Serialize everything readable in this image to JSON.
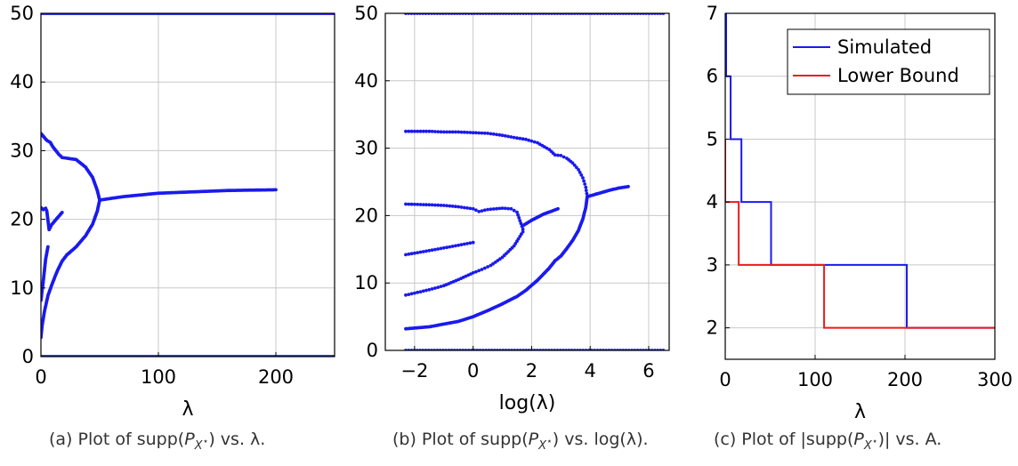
{
  "chart_data": [
    {
      "type": "scatter",
      "xlabel": "λ",
      "ylabel": "",
      "xlim": [
        0,
        250
      ],
      "ylim": [
        0,
        50
      ],
      "xticks": [
        0,
        100,
        200
      ],
      "yticks": [
        0,
        10,
        20,
        30,
        40,
        50
      ],
      "grid": true,
      "color": "#1a1aee",
      "series": [
        {
          "x": [
            0,
            250
          ],
          "y": [
            0,
            0
          ]
        },
        {
          "x": [
            0,
            250
          ],
          "y": [
            50,
            50
          ]
        },
        {
          "x": [
            0,
            2,
            5,
            8,
            10,
            15,
            18,
            22,
            30,
            38,
            44,
            48,
            50
          ],
          "y": [
            32.5,
            32.1,
            31.5,
            31.2,
            30.6,
            29.5,
            29.0,
            28.9,
            28.7,
            27.6,
            26.1,
            24.2,
            22.8
          ]
        },
        {
          "x": [
            50,
            48,
            44,
            38,
            30,
            22,
            18,
            14,
            10,
            6,
            3,
            1,
            0
          ],
          "y": [
            22.8,
            21.2,
            19.3,
            17.6,
            16.0,
            14.8,
            13.9,
            12.5,
            10.8,
            8.9,
            6.6,
            4.5,
            2.8
          ]
        },
        {
          "x": [
            50,
            70,
            100,
            130,
            160,
            200
          ],
          "y": [
            22.8,
            23.3,
            23.8,
            24.0,
            24.2,
            24.3
          ]
        },
        {
          "x": [
            0,
            2,
            4,
            5,
            7,
            9,
            12,
            15,
            18
          ],
          "y": [
            21.7,
            21.4,
            21.6,
            21.2,
            18.5,
            19.2,
            19.8,
            20.4,
            21.0
          ]
        },
        {
          "x": [
            0,
            2,
            4,
            6
          ],
          "y": [
            8.2,
            11.0,
            14.2,
            16.0
          ]
        }
      ]
    },
    {
      "type": "scatter",
      "xlabel": "log(λ)",
      "ylabel": "",
      "xlim": [
        -3,
        6.7
      ],
      "ylim": [
        0,
        50
      ],
      "xticks": [
        -2,
        0,
        2,
        4,
        6
      ],
      "yticks": [
        0,
        10,
        20,
        30,
        40,
        50
      ],
      "grid": true,
      "color": "#1a1aee",
      "series": [
        {
          "x": [
            -2.3,
            6.5
          ],
          "y": [
            0,
            0
          ]
        },
        {
          "x": [
            -2.3,
            6.5
          ],
          "y": [
            50,
            50
          ]
        },
        {
          "x": [
            -2.3,
            -1.5,
            -1.0,
            -0.5,
            0.0,
            0.5,
            1.0,
            1.5,
            1.8,
            2.2,
            2.6,
            2.8,
            3.0,
            3.2,
            3.4,
            3.6,
            3.75,
            3.85,
            3.9
          ],
          "y": [
            32.5,
            32.5,
            32.4,
            32.4,
            32.3,
            32.2,
            31.9,
            31.5,
            31.3,
            30.8,
            29.8,
            29.0,
            28.9,
            28.5,
            27.8,
            26.8,
            25.6,
            24.2,
            22.8
          ]
        },
        {
          "x": [
            3.9,
            3.85,
            3.75,
            3.6,
            3.4,
            3.2,
            3.0,
            2.8,
            2.6,
            2.2,
            1.8,
            1.5,
            1.0,
            0.5,
            0.0,
            -0.5,
            -1.0,
            -1.5,
            -2.3
          ],
          "y": [
            22.8,
            21.2,
            19.5,
            17.8,
            16.3,
            15.1,
            14.0,
            13.3,
            12.2,
            10.4,
            8.9,
            8.0,
            6.9,
            5.9,
            5.0,
            4.3,
            3.9,
            3.5,
            3.2
          ]
        },
        {
          "x": [
            3.9,
            4.3,
            4.7,
            5.0,
            5.3
          ],
          "y": [
            22.8,
            23.3,
            23.8,
            24.1,
            24.3
          ]
        },
        {
          "x": [
            -2.3,
            -1.5,
            -1.0,
            -0.5,
            0.0,
            0.2,
            0.5,
            1.0,
            1.3,
            1.5,
            1.7
          ],
          "y": [
            21.7,
            21.6,
            21.5,
            21.3,
            21.0,
            20.6,
            20.9,
            21.1,
            21.0,
            20.5,
            18.0
          ]
        },
        {
          "x": [
            1.7,
            2.0,
            2.4,
            2.9
          ],
          "y": [
            18.5,
            19.3,
            20.2,
            21.0
          ]
        },
        {
          "x": [
            -2.3,
            -1.5,
            -1.0,
            -0.5,
            0.0,
            0.3,
            0.6,
            1.0,
            1.4,
            1.7
          ],
          "y": [
            8.2,
            9.0,
            9.6,
            10.5,
            11.5,
            12.0,
            12.6,
            13.8,
            15.5,
            17.6
          ]
        },
        {
          "x": [
            -2.3,
            -1.5,
            -1.0,
            -0.5,
            0.0
          ],
          "y": [
            14.2,
            14.8,
            15.2,
            15.6,
            16.0
          ]
        }
      ]
    },
    {
      "type": "line",
      "xlabel": "λ",
      "ylabel": "",
      "xlim": [
        0,
        300
      ],
      "ylim": [
        1.5,
        7
      ],
      "xticks": [
        0,
        100,
        200,
        300
      ],
      "yticks": [
        2,
        3,
        4,
        5,
        6,
        7
      ],
      "grid": true,
      "legend": "top-right",
      "series": [
        {
          "name": "Simulated",
          "color": "#1a1aee",
          "x": [
            0,
            1,
            1,
            6,
            6,
            18,
            18,
            51,
            51,
            202,
            202,
            300
          ],
          "y": [
            7,
            7,
            6,
            6,
            5,
            5,
            4,
            4,
            3,
            3,
            2,
            2
          ]
        },
        {
          "name": "Lower Bound",
          "color": "#ee1a1a",
          "x": [
            0,
            0,
            0,
            15,
            15,
            110,
            110,
            300
          ],
          "y": [
            5,
            5,
            4,
            4,
            3,
            3,
            2,
            2
          ]
        }
      ]
    }
  ],
  "captions": {
    "a": {
      "pre": "(a) Plot of ",
      "supp": "supp",
      "p": "P",
      "sub": "X",
      "star": "⋆",
      "post": ") vs. λ."
    },
    "b": {
      "pre": "(b) Plot of ",
      "supp": "supp",
      "p": "P",
      "sub": "X",
      "star": "⋆",
      "post": ") vs. log(λ)."
    },
    "c": {
      "pre": "(c) Plot of |",
      "supp": "supp",
      "p": "P",
      "sub": "X",
      "star": "⋆",
      "post": ")| vs. A."
    }
  }
}
